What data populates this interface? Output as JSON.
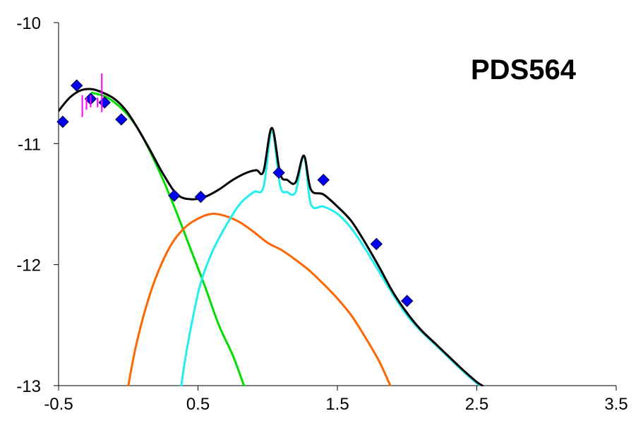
{
  "chart_data": {
    "type": "line",
    "title": "PDS564",
    "xlabel": "",
    "ylabel": "",
    "xlim": [
      -0.5,
      3.5
    ],
    "ylim": [
      -13,
      -10
    ],
    "x_ticks": [
      -0.5,
      0.5,
      1.5,
      2.5,
      3.5
    ],
    "x_tick_labels": [
      "-0.5",
      "0.5",
      "1.5",
      "2.5",
      "3.5"
    ],
    "y_ticks": [
      -10,
      -11,
      -12,
      -13
    ],
    "y_tick_labels": [
      "-10",
      "-11",
      "-12",
      "-13"
    ],
    "grid": false,
    "legend": "none",
    "series": [
      {
        "kind": "line",
        "color": "#00dd00",
        "points": [
          [
            -0.26,
            -10.58
          ],
          [
            -0.15,
            -10.62
          ],
          [
            -0.03,
            -10.73
          ],
          [
            0.06,
            -10.86
          ],
          [
            0.15,
            -11.05
          ],
          [
            0.25,
            -11.3
          ],
          [
            0.35,
            -11.58
          ],
          [
            0.45,
            -11.88
          ],
          [
            0.55,
            -12.18
          ],
          [
            0.65,
            -12.5
          ],
          [
            0.75,
            -12.75
          ],
          [
            0.83,
            -13.0
          ]
        ]
      },
      {
        "kind": "line",
        "color": "#ff6600",
        "points": [
          [
            0.0,
            -13.0
          ],
          [
            0.05,
            -12.7
          ],
          [
            0.12,
            -12.38
          ],
          [
            0.2,
            -12.1
          ],
          [
            0.3,
            -11.85
          ],
          [
            0.4,
            -11.7
          ],
          [
            0.5,
            -11.62
          ],
          [
            0.6,
            -11.58
          ],
          [
            0.7,
            -11.6
          ],
          [
            0.8,
            -11.65
          ],
          [
            0.9,
            -11.73
          ],
          [
            1.0,
            -11.82
          ],
          [
            1.1,
            -11.88
          ],
          [
            1.2,
            -11.96
          ],
          [
            1.3,
            -12.05
          ],
          [
            1.4,
            -12.16
          ],
          [
            1.5,
            -12.28
          ],
          [
            1.6,
            -12.42
          ],
          [
            1.7,
            -12.6
          ],
          [
            1.8,
            -12.8
          ],
          [
            1.88,
            -13.0
          ]
        ]
      },
      {
        "kind": "line",
        "color": "#22eeee",
        "points": [
          [
            0.38,
            -13.0
          ],
          [
            0.42,
            -12.7
          ],
          [
            0.47,
            -12.4
          ],
          [
            0.52,
            -12.15
          ],
          [
            0.6,
            -11.9
          ],
          [
            0.7,
            -11.68
          ],
          [
            0.8,
            -11.5
          ],
          [
            0.9,
            -11.4
          ],
          [
            0.97,
            -11.36
          ],
          [
            1.03,
            -10.9
          ],
          [
            1.09,
            -11.35
          ],
          [
            1.14,
            -11.4
          ],
          [
            1.2,
            -11.4
          ],
          [
            1.26,
            -11.1
          ],
          [
            1.31,
            -11.5
          ],
          [
            1.4,
            -11.52
          ],
          [
            1.5,
            -11.58
          ],
          [
            1.6,
            -11.7
          ],
          [
            1.7,
            -11.87
          ],
          [
            1.8,
            -12.06
          ],
          [
            1.9,
            -12.25
          ],
          [
            2.0,
            -12.42
          ],
          [
            2.1,
            -12.55
          ],
          [
            2.2,
            -12.66
          ],
          [
            2.3,
            -12.77
          ],
          [
            2.4,
            -12.88
          ],
          [
            2.5,
            -12.98
          ],
          [
            2.53,
            -13.0
          ]
        ]
      },
      {
        "kind": "line",
        "color": "#000000",
        "points": [
          [
            -0.5,
            -10.73
          ],
          [
            -0.42,
            -10.62
          ],
          [
            -0.34,
            -10.56
          ],
          [
            -0.26,
            -10.55
          ],
          [
            -0.18,
            -10.58
          ],
          [
            -0.1,
            -10.63
          ],
          [
            -0.02,
            -10.72
          ],
          [
            0.06,
            -10.86
          ],
          [
            0.15,
            -11.04
          ],
          [
            0.25,
            -11.25
          ],
          [
            0.35,
            -11.42
          ],
          [
            0.45,
            -11.46
          ],
          [
            0.55,
            -11.44
          ],
          [
            0.65,
            -11.38
          ],
          [
            0.75,
            -11.3
          ],
          [
            0.85,
            -11.24
          ],
          [
            0.92,
            -11.22
          ],
          [
            0.97,
            -11.23
          ],
          [
            1.03,
            -10.87
          ],
          [
            1.09,
            -11.25
          ],
          [
            1.14,
            -11.3
          ],
          [
            1.2,
            -11.32
          ],
          [
            1.26,
            -11.1
          ],
          [
            1.31,
            -11.38
          ],
          [
            1.4,
            -11.42
          ],
          [
            1.5,
            -11.52
          ],
          [
            1.6,
            -11.64
          ],
          [
            1.7,
            -11.82
          ],
          [
            1.8,
            -12.02
          ],
          [
            1.9,
            -12.23
          ],
          [
            2.0,
            -12.4
          ],
          [
            2.1,
            -12.54
          ],
          [
            2.2,
            -12.65
          ],
          [
            2.3,
            -12.76
          ],
          [
            2.4,
            -12.87
          ],
          [
            2.5,
            -12.97
          ],
          [
            2.54,
            -13.0
          ]
        ]
      },
      {
        "kind": "points",
        "marker": "diamond",
        "color": "#0000ee",
        "points": [
          [
            -0.47,
            -10.82
          ],
          [
            -0.37,
            -10.52
          ],
          [
            -0.27,
            -10.63
          ],
          [
            -0.17,
            -10.66
          ],
          [
            -0.05,
            -10.8
          ],
          [
            0.33,
            -11.43
          ],
          [
            0.52,
            -11.44
          ],
          [
            1.08,
            -11.24
          ],
          [
            1.4,
            -11.3
          ],
          [
            1.78,
            -11.83
          ],
          [
            2.0,
            -12.3
          ]
        ]
      },
      {
        "kind": "errorbars",
        "color": "#ff00ff",
        "points": [
          [
            -0.33,
            -10.6,
            -10.78
          ],
          [
            -0.3,
            -10.62,
            -10.72
          ],
          [
            -0.27,
            -10.6,
            -10.7
          ],
          [
            -0.22,
            -10.62,
            -10.7
          ],
          [
            -0.19,
            -10.42,
            -10.74
          ]
        ]
      }
    ]
  }
}
